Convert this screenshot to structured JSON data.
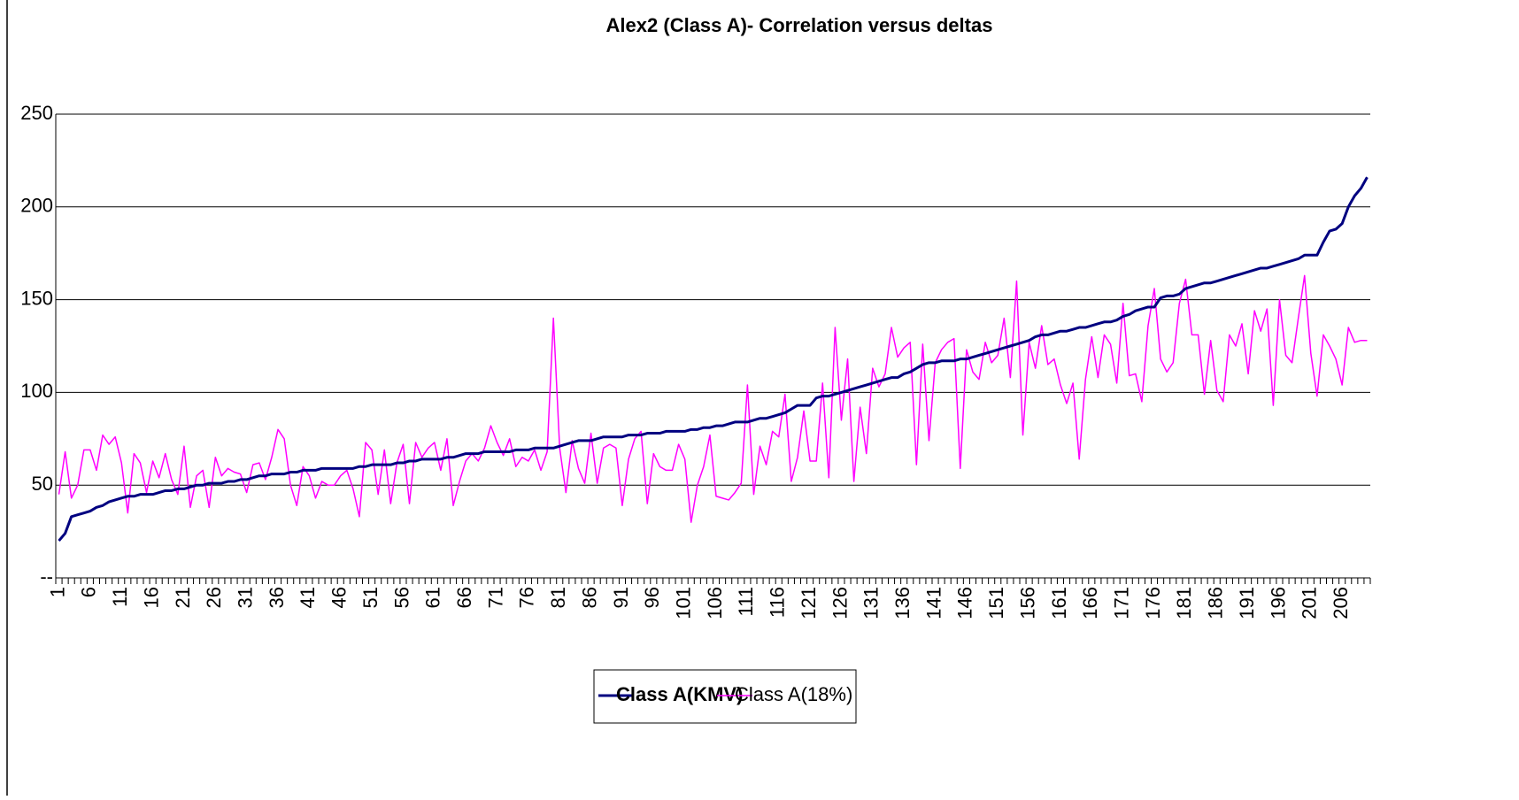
{
  "chart_data": {
    "type": "line",
    "title": "Alex2 (Class A)- Correlation versus deltas",
    "categories": [
      1,
      null,
      null,
      null,
      null,
      6,
      null,
      null,
      null,
      null,
      11,
      null,
      null,
      null,
      null,
      16,
      null,
      null,
      null,
      null,
      21,
      null,
      null,
      null,
      null,
      26,
      null,
      null,
      null,
      null,
      31,
      null,
      null,
      null,
      null,
      36,
      null,
      null,
      null,
      null,
      41,
      null,
      null,
      null,
      null,
      46,
      null,
      null,
      null,
      null,
      51,
      null,
      null,
      null,
      null,
      56,
      null,
      null,
      null,
      null,
      61,
      null,
      null,
      null,
      null,
      66,
      null,
      null,
      null,
      null,
      71,
      null,
      null,
      null,
      null,
      76,
      null,
      null,
      null,
      null,
      81,
      null,
      null,
      null,
      null,
      86,
      null,
      null,
      null,
      null,
      91,
      null,
      null,
      null,
      null,
      96,
      null,
      null,
      null,
      null,
      101,
      null,
      null,
      null,
      null,
      106,
      null,
      null,
      null,
      null,
      111,
      null,
      null,
      null,
      null,
      116,
      null,
      null,
      null,
      null,
      121,
      null,
      null,
      null,
      null,
      126,
      null,
      null,
      null,
      null,
      131,
      null,
      null,
      null,
      null,
      136,
      null,
      null,
      null,
      null,
      141,
      null,
      null,
      null,
      null,
      146,
      null,
      null,
      null,
      null,
      151,
      null,
      null,
      null,
      null,
      156,
      null,
      null,
      null,
      null,
      161,
      null,
      null,
      null,
      null,
      166,
      null,
      null,
      null,
      null,
      171,
      null,
      null,
      null,
      null,
      176,
      null,
      null,
      null,
      null,
      181,
      null,
      null,
      null,
      null,
      186,
      null,
      null,
      null,
      null,
      191,
      null,
      null,
      null,
      null,
      196,
      null,
      null,
      null,
      null,
      201,
      null,
      null,
      null,
      null,
      206,
      null,
      null,
      null,
      null
    ],
    "series": [
      {
        "name": "Class A(KMV)",
        "color": "#000080",
        "values": [
          20,
          24,
          33,
          34,
          35,
          36,
          38,
          39,
          41,
          42,
          43,
          44,
          44,
          45,
          45,
          45,
          46,
          47,
          47,
          48,
          48,
          49,
          50,
          50,
          51,
          51,
          51,
          52,
          52,
          53,
          53,
          54,
          55,
          55,
          56,
          56,
          56,
          57,
          57,
          58,
          58,
          58,
          59,
          59,
          59,
          59,
          59,
          59,
          60,
          60,
          61,
          61,
          61,
          61,
          62,
          62,
          63,
          63,
          64,
          64,
          64,
          64,
          65,
          65,
          66,
          67,
          67,
          67,
          68,
          68,
          68,
          68,
          68,
          69,
          69,
          69,
          70,
          70,
          70,
          70,
          71,
          72,
          73,
          74,
          74,
          74,
          75,
          76,
          76,
          76,
          76,
          77,
          77,
          77,
          78,
          78,
          78,
          79,
          79,
          79,
          79,
          80,
          80,
          81,
          81,
          82,
          82,
          83,
          84,
          84,
          84,
          85,
          86,
          86,
          87,
          88,
          89,
          91,
          93,
          93,
          93,
          97,
          98,
          98,
          99,
          100,
          101,
          102,
          103,
          104,
          105,
          106,
          107,
          108,
          108,
          110,
          111,
          113,
          115,
          116,
          116,
          117,
          117,
          117,
          118,
          118,
          119,
          120,
          121,
          122,
          123,
          124,
          125,
          126,
          127,
          128,
          130,
          131,
          131,
          132,
          133,
          133,
          134,
          135,
          135,
          136,
          137,
          138,
          138,
          139,
          141,
          142,
          144,
          145,
          146,
          146,
          151,
          152,
          152,
          153,
          156,
          157,
          158,
          159,
          159,
          160,
          161,
          162,
          163,
          164,
          165,
          166,
          167,
          167,
          168,
          169,
          170,
          171,
          172,
          174,
          174,
          174,
          181,
          187,
          188,
          191,
          200,
          206,
          210,
          216
        ]
      },
      {
        "name": "Class A(18%)",
        "color": "#ff00ff",
        "values": [
          45,
          68,
          43,
          50,
          69,
          69,
          58,
          77,
          72,
          76,
          62,
          35,
          67,
          62,
          46,
          63,
          54,
          67,
          53,
          45,
          71,
          38,
          55,
          58,
          38,
          65,
          55,
          59,
          57,
          56,
          46,
          61,
          62,
          53,
          65,
          80,
          75,
          50,
          39,
          60,
          55,
          43,
          52,
          50,
          50,
          55,
          58,
          48,
          33,
          73,
          69,
          45,
          69,
          40,
          62,
          72,
          40,
          73,
          65,
          70,
          73,
          58,
          75,
          39,
          52,
          63,
          67,
          63,
          70,
          82,
          73,
          66,
          75,
          60,
          65,
          63,
          69,
          58,
          68,
          140,
          70,
          46,
          74,
          59,
          51,
          78,
          51,
          70,
          72,
          70,
          39,
          64,
          75,
          79,
          40,
          67,
          60,
          58,
          58,
          72,
          64,
          30,
          50,
          60,
          77,
          44,
          43,
          42,
          46,
          51,
          104,
          45,
          71,
          61,
          79,
          76,
          99,
          52,
          65,
          90,
          63,
          63,
          105,
          54,
          135,
          85,
          118,
          52,
          92,
          67,
          113,
          103,
          110,
          135,
          119,
          124,
          127,
          61,
          126,
          74,
          116,
          123,
          127,
          129,
          59,
          123,
          111,
          107,
          127,
          116,
          120,
          140,
          108,
          160,
          77,
          127,
          113,
          136,
          115,
          118,
          104,
          94,
          105,
          64,
          107,
          130,
          108,
          131,
          126,
          105,
          148,
          109,
          110,
          95,
          136,
          156,
          118,
          111,
          116,
          148,
          161,
          131,
          131,
          99,
          128,
          101,
          95,
          131,
          125,
          137,
          110,
          144,
          133,
          145,
          93,
          150,
          120,
          116,
          140,
          163,
          121,
          98,
          131,
          125,
          118,
          104,
          135,
          127,
          128,
          128
        ]
      }
    ],
    "ylim": [
      0,
      250
    ],
    "yticks": [
      {
        "value": 0,
        "label": "--"
      },
      50,
      100,
      150,
      200,
      250
    ],
    "grid": true
  }
}
